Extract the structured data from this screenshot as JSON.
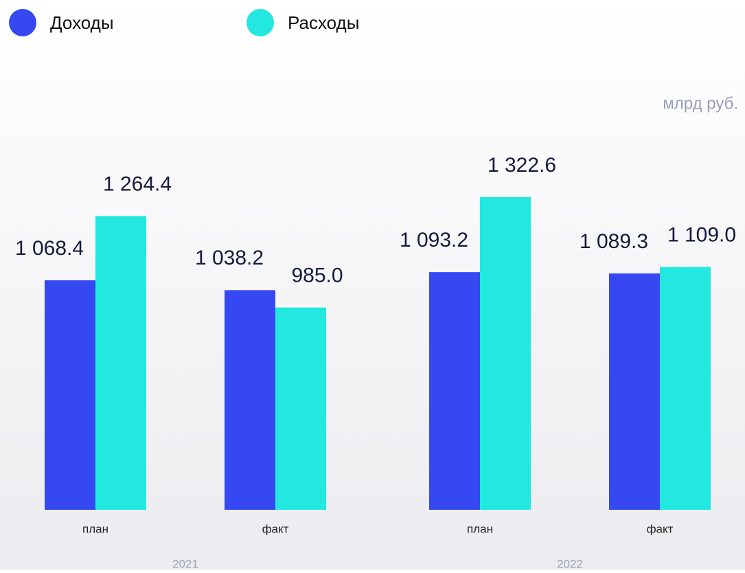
{
  "chart_data": {
    "type": "bar",
    "unit_label": "млрд руб.",
    "categories": [
      "план",
      "факт",
      "план",
      "факт"
    ],
    "groups": [
      "2021",
      "2022"
    ],
    "series": [
      {
        "name": "Доходы",
        "color": "#3548f2",
        "values": [
          1068.4,
          1038.2,
          1093.2,
          1089.3
        ],
        "value_labels": [
          "1 068.4",
          "1 038.2",
          "1 093.2",
          "1 089.3"
        ]
      },
      {
        "name": "Расходы",
        "color": "#22e8e0",
        "values": [
          1264.4,
          985.0,
          1322.6,
          1109.0
        ],
        "value_labels": [
          "1 264.4",
          "985.0",
          "1 322.6",
          "1 109.0"
        ]
      }
    ],
    "ylim": [
      367,
      1400
    ],
    "grid": false
  }
}
